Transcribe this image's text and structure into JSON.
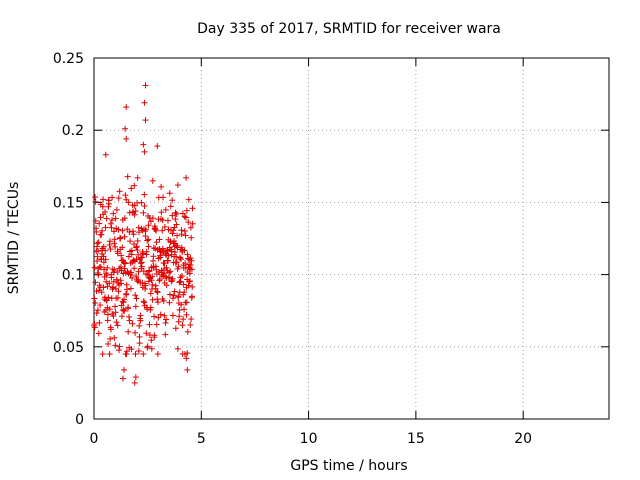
{
  "chart_data": {
    "type": "scatter",
    "title": "Day 335 of 2017, SRMTID for receiver wara",
    "xlabel": "GPS time / hours",
    "ylabel": "SRMTID / TECUs",
    "xlim": [
      0,
      24
    ],
    "ylim": [
      0,
      0.25
    ],
    "x_ticks": [
      0,
      5,
      10,
      15,
      20
    ],
    "x_tick_labels": [
      "0",
      "5",
      "10",
      "15",
      "20"
    ],
    "y_ticks": [
      0,
      0.05,
      0.1,
      0.15,
      0.2,
      0.25
    ],
    "y_tick_labels": [
      "0",
      "0.05",
      "0.1",
      "0.15",
      "0.2",
      "0.25"
    ],
    "grid": true,
    "marker": "+",
    "color": "#e00000",
    "series": [
      {
        "name": "SRMTID",
        "x_range": [
          0,
          4.6
        ],
        "sample_count": 520,
        "typical_range": [
          0.05,
          0.165
        ],
        "notable_points": [
          {
            "x": 2.4,
            "y": 0.231
          },
          {
            "x": 2.35,
            "y": 0.219
          },
          {
            "x": 1.5,
            "y": 0.216
          },
          {
            "x": 2.4,
            "y": 0.207
          },
          {
            "x": 1.45,
            "y": 0.201
          },
          {
            "x": 1.5,
            "y": 0.194
          },
          {
            "x": 2.3,
            "y": 0.19
          },
          {
            "x": 2.95,
            "y": 0.189
          },
          {
            "x": 2.35,
            "y": 0.185
          },
          {
            "x": 0.55,
            "y": 0.183
          },
          {
            "x": 4.3,
            "y": 0.042
          },
          {
            "x": 4.35,
            "y": 0.034
          },
          {
            "x": 1.4,
            "y": 0.034
          },
          {
            "x": 1.35,
            "y": 0.028
          },
          {
            "x": 1.95,
            "y": 0.029
          },
          {
            "x": 1.9,
            "y": 0.025
          }
        ]
      }
    ]
  }
}
